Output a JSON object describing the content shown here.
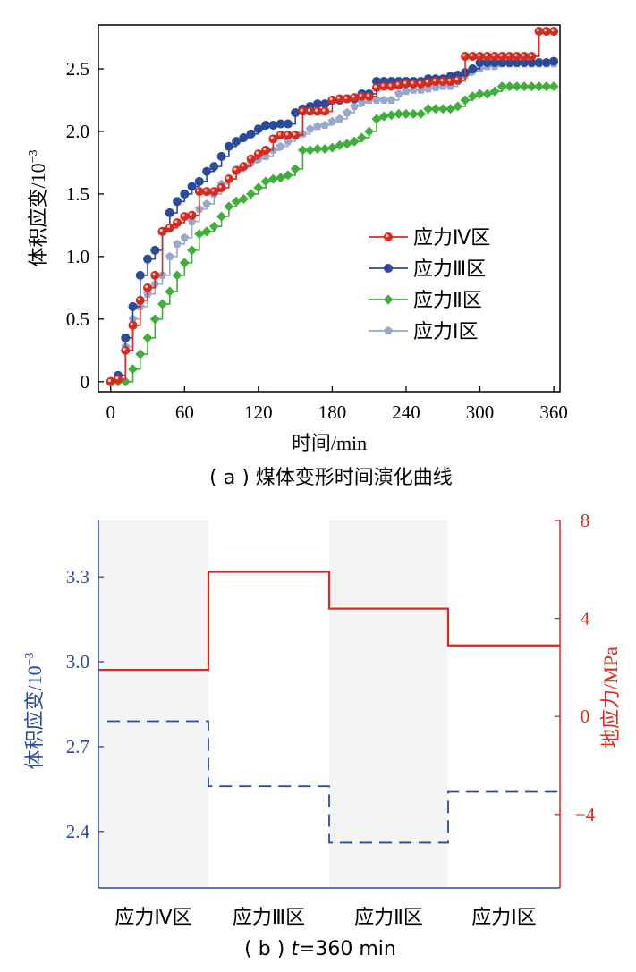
{
  "chart_data": [
    {
      "type": "line",
      "caption": "( a ) 煤体变形时间演化曲线",
      "xlabel": "时间/min",
      "ylabel": "体积应变/10",
      "ylabel_exp": "−3",
      "xlim": [
        -10,
        365
      ],
      "ylim": [
        -0.08,
        2.85
      ],
      "xticks": [
        "0",
        "60",
        "120",
        "180",
        "240",
        "300",
        "360"
      ],
      "xtick_values": [
        0,
        60,
        120,
        180,
        240,
        300,
        360
      ],
      "yticks": [
        "0",
        "0.5",
        "1.0",
        "1.5",
        "2.0",
        "2.5"
      ],
      "ytick_values": [
        0,
        0.5,
        1.0,
        1.5,
        2.0,
        2.5
      ],
      "legend_position": "center-right",
      "series": [
        {
          "name": "应力Ⅳ区",
          "color": "#d62b1f",
          "marker": "circle",
          "x": [
            0,
            6,
            12,
            18,
            24,
            30,
            36,
            42,
            48,
            54,
            60,
            66,
            72,
            78,
            84,
            90,
            96,
            102,
            108,
            114,
            120,
            126,
            132,
            138,
            144,
            150,
            156,
            162,
            168,
            174,
            180,
            186,
            192,
            198,
            204,
            210,
            216,
            222,
            228,
            234,
            240,
            246,
            252,
            258,
            264,
            270,
            276,
            282,
            288,
            294,
            300,
            306,
            312,
            318,
            324,
            330,
            336,
            342,
            348,
            354,
            360
          ],
          "y": [
            0.0,
            0.02,
            0.25,
            0.45,
            0.65,
            0.75,
            0.85,
            1.2,
            1.23,
            1.27,
            1.32,
            1.33,
            1.52,
            1.52,
            1.52,
            1.55,
            1.62,
            1.69,
            1.72,
            1.78,
            1.82,
            1.85,
            1.94,
            1.97,
            1.97,
            1.97,
            2.16,
            2.16,
            2.16,
            2.16,
            2.25,
            2.26,
            2.26,
            2.27,
            2.28,
            2.28,
            2.35,
            2.36,
            2.36,
            2.37,
            2.38,
            2.38,
            2.38,
            2.39,
            2.4,
            2.4,
            2.4,
            2.41,
            2.6,
            2.6,
            2.6,
            2.6,
            2.6,
            2.6,
            2.6,
            2.6,
            2.6,
            2.6,
            2.8,
            2.8,
            2.8
          ]
        },
        {
          "name": "应力Ⅲ区",
          "color": "#2a4a9a",
          "marker": "circle",
          "x": [
            0,
            6,
            12,
            18,
            24,
            30,
            36,
            42,
            48,
            54,
            60,
            66,
            72,
            78,
            84,
            90,
            96,
            102,
            108,
            114,
            120,
            126,
            132,
            138,
            144,
            150,
            156,
            162,
            168,
            174,
            180,
            186,
            192,
            198,
            204,
            210,
            216,
            222,
            228,
            234,
            240,
            246,
            252,
            258,
            264,
            270,
            276,
            282,
            288,
            294,
            300,
            306,
            312,
            318,
            324,
            330,
            336,
            342,
            348,
            354,
            360
          ],
          "y": [
            0.0,
            0.05,
            0.35,
            0.6,
            0.85,
            0.98,
            1.05,
            1.2,
            1.35,
            1.44,
            1.5,
            1.56,
            1.6,
            1.68,
            1.72,
            1.8,
            1.88,
            1.92,
            1.95,
            1.98,
            2.02,
            2.05,
            2.05,
            2.06,
            2.06,
            2.15,
            2.18,
            2.2,
            2.22,
            2.22,
            2.25,
            2.25,
            2.26,
            2.26,
            2.3,
            2.3,
            2.4,
            2.4,
            2.4,
            2.4,
            2.4,
            2.4,
            2.4,
            2.42,
            2.42,
            2.42,
            2.44,
            2.45,
            2.47,
            2.5,
            2.55,
            2.55,
            2.55,
            2.55,
            2.55,
            2.55,
            2.55,
            2.55,
            2.55,
            2.55,
            2.56
          ]
        },
        {
          "name": "应力Ⅱ区",
          "color": "#3fae3a",
          "marker": "diamond",
          "x": [
            0,
            6,
            12,
            18,
            24,
            30,
            36,
            42,
            48,
            54,
            60,
            66,
            72,
            78,
            84,
            90,
            96,
            102,
            108,
            114,
            120,
            126,
            132,
            138,
            144,
            150,
            156,
            162,
            168,
            174,
            180,
            186,
            192,
            198,
            204,
            210,
            216,
            222,
            228,
            234,
            240,
            246,
            252,
            258,
            264,
            270,
            276,
            282,
            288,
            294,
            300,
            306,
            312,
            318,
            324,
            330,
            336,
            342,
            348,
            354,
            360
          ],
          "y": [
            0.0,
            0.0,
            0.0,
            0.1,
            0.22,
            0.35,
            0.5,
            0.62,
            0.72,
            0.85,
            0.95,
            1.05,
            1.18,
            1.2,
            1.24,
            1.32,
            1.4,
            1.44,
            1.46,
            1.5,
            1.55,
            1.6,
            1.62,
            1.63,
            1.65,
            1.7,
            1.85,
            1.85,
            1.86,
            1.86,
            1.87,
            1.89,
            1.9,
            1.92,
            1.95,
            2.0,
            2.1,
            2.12,
            2.13,
            2.14,
            2.14,
            2.14,
            2.14,
            2.18,
            2.18,
            2.18,
            2.18,
            2.2,
            2.25,
            2.28,
            2.3,
            2.3,
            2.32,
            2.36,
            2.36,
            2.36,
            2.36,
            2.36,
            2.36,
            2.36,
            2.36
          ]
        },
        {
          "name": "应力Ⅰ区",
          "color": "#98a8cc",
          "marker": "pentagon",
          "x": [
            0,
            6,
            12,
            18,
            24,
            30,
            36,
            42,
            48,
            54,
            60,
            66,
            72,
            78,
            84,
            90,
            96,
            102,
            108,
            114,
            120,
            126,
            132,
            138,
            144,
            150,
            156,
            162,
            168,
            174,
            180,
            186,
            192,
            198,
            204,
            210,
            216,
            222,
            228,
            234,
            240,
            246,
            252,
            258,
            264,
            270,
            276,
            282,
            288,
            294,
            300,
            306,
            312,
            318,
            324,
            330,
            336,
            342,
            348,
            354,
            360
          ],
          "y": [
            0.0,
            0.02,
            0.28,
            0.5,
            0.6,
            0.7,
            0.78,
            0.85,
            1.0,
            1.1,
            1.15,
            1.28,
            1.38,
            1.42,
            1.5,
            1.58,
            1.62,
            1.68,
            1.72,
            1.75,
            1.78,
            1.8,
            1.85,
            1.88,
            1.92,
            1.96,
            1.98,
            2.02,
            2.04,
            2.05,
            2.08,
            2.1,
            2.15,
            2.2,
            2.23,
            2.25,
            2.25,
            2.25,
            2.25,
            2.3,
            2.32,
            2.33,
            2.33,
            2.34,
            2.35,
            2.36,
            2.36,
            2.4,
            2.45,
            2.48,
            2.5,
            2.52,
            2.52,
            2.54,
            2.54,
            2.54,
            2.54,
            2.54,
            2.54,
            2.54,
            2.54
          ]
        }
      ]
    },
    {
      "type": "step",
      "caption_prefix": "( b ) ",
      "caption_var": "t",
      "caption_rest": "=360 min",
      "categories": [
        "应力Ⅳ区",
        "应力Ⅲ区",
        "应力Ⅱ区",
        "应力Ⅰ区"
      ],
      "shaded_categories": [
        0,
        2
      ],
      "ylabel_left": "体积应变/10",
      "ylabel_left_exp": "−3",
      "ylabel_right": "地应力/MPa",
      "ylim_left": [
        2.2,
        3.5
      ],
      "ylim_right": [
        -7,
        8
      ],
      "yticks_left": [
        "2.4",
        "2.7",
        "3.0",
        "3.3"
      ],
      "ytick_values_left": [
        2.4,
        2.7,
        3.0,
        3.3
      ],
      "yticks_right": [
        "−4",
        "0",
        "4",
        "8"
      ],
      "ytick_values_right": [
        -4,
        0,
        4,
        8
      ],
      "left_color": "#2a4a9a",
      "right_color": "#d62b1f",
      "series": [
        {
          "axis": "left",
          "style": "dashed",
          "color": "#2a4a9a",
          "values": [
            2.79,
            2.56,
            2.36,
            2.54
          ]
        },
        {
          "axis": "right",
          "style": "solid",
          "color": "#d62b1f",
          "values": [
            1.9,
            5.9,
            4.4,
            2.9
          ]
        }
      ]
    }
  ]
}
